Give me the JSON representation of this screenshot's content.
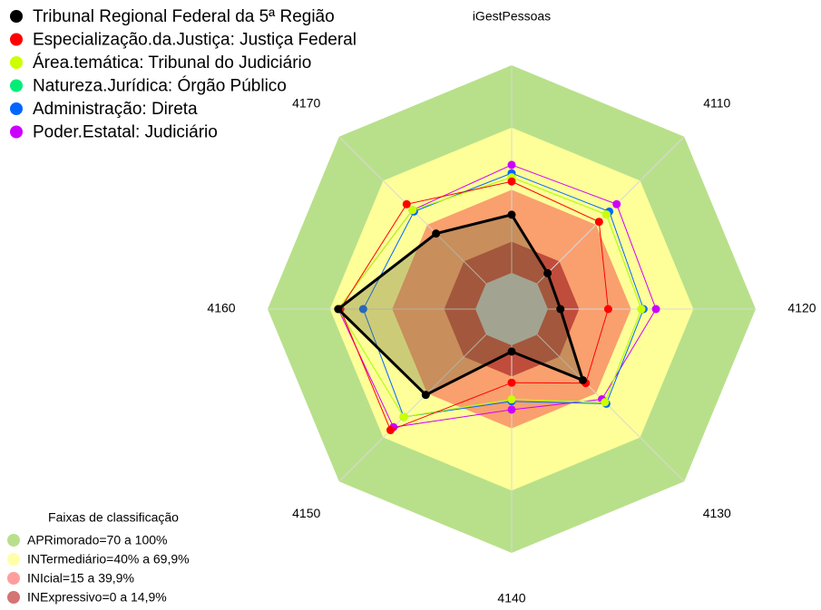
{
  "chart_data": {
    "type": "radar",
    "title": "iGestPessoas",
    "categories": [
      "iGestPessoas",
      "4110",
      "4120",
      "4130",
      "4140",
      "4150",
      "4160",
      "4170"
    ],
    "rlim": [
      0,
      100
    ],
    "series": [
      {
        "name": "Tribunal Regional Federal da 5ª Região",
        "color": "#000000",
        "values": [
          28,
          7,
          6,
          31,
          3,
          41,
          66,
          34
        ]
      },
      {
        "name": "Especialização.da.Justiça: Justiça Federal",
        "color": "#ff0000",
        "values": [
          44,
          42,
          29,
          33,
          18,
          65,
          65,
          54
        ]
      },
      {
        "name": "Área.temática: Tribunal do Judiciário",
        "color": "#ccff00",
        "values": [
          46,
          47,
          45,
          46,
          26,
          56,
          66,
          50
        ]
      },
      {
        "name": "Natureza.Jurídica: Órgão Público",
        "color": "#00ee77",
        "values": [
          46,
          47,
          45,
          46,
          26,
          56,
          66,
          50
        ]
      },
      {
        "name": "Administração: Direta",
        "color": "#0066ff",
        "values": [
          48,
          49,
          46,
          47,
          27,
          56,
          54,
          49
        ]
      },
      {
        "name": "Poder.Estatal: Judiciário",
        "color": "#cc00ff",
        "values": [
          52,
          54,
          52,
          44,
          31,
          63,
          66,
          50
        ]
      }
    ],
    "bands_title": "Faixas de classificação",
    "bands": [
      {
        "label": "APRimorado=70 a 100%",
        "color": "#b8e08a",
        "legend_color": "#b8e08a",
        "from": 70,
        "to": 100
      },
      {
        "label": "INTermediário=40% a 69,9%",
        "color": "#ffff99",
        "legend_color": "#ffffaa",
        "from": 40,
        "to": 70
      },
      {
        "label": "INIcial=15 a 39,9%",
        "color": "#f9a06e",
        "legend_color": "#ff9e9e",
        "from": 15,
        "to": 40
      },
      {
        "label": "INExpressivo=0 a 14,9%",
        "color": "#c04c3c",
        "legend_color": "#d47474",
        "from": 0,
        "to": 15
      }
    ]
  }
}
